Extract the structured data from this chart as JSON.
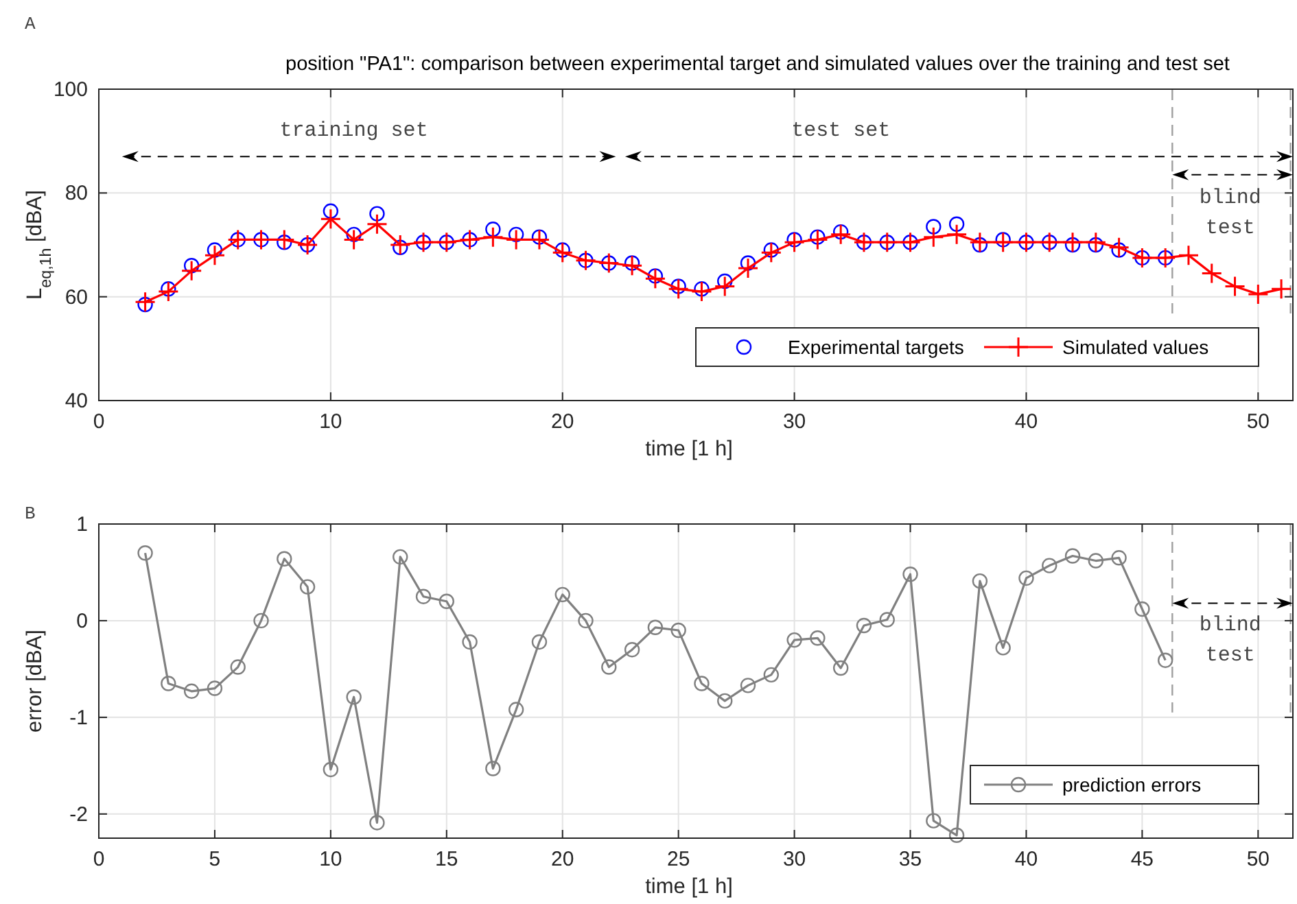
{
  "chart_data": [
    {
      "type": "line",
      "title": "position \"PA1\": comparison between experimental target and simulated values over the training and test set",
      "xlabel": "time [1 h]",
      "ylabel": "L$_{eq,1h}$ [dBA]",
      "xlim": [
        0,
        51.5
      ],
      "xticks": [
        0,
        10,
        20,
        30,
        40,
        50
      ],
      "ylim": [
        40,
        100
      ],
      "yticks": [
        40,
        60,
        80,
        100
      ],
      "grid": true,
      "legend": "bottom right",
      "series": [
        {
          "name": "Experimental targets",
          "type": "scatter",
          "marker": "circle",
          "color": "#0000ff",
          "x": [
            2,
            3,
            4,
            5,
            6,
            7,
            8,
            9,
            10,
            11,
            12,
            13,
            14,
            15,
            16,
            17,
            18,
            19,
            20,
            21,
            22,
            23,
            24,
            25,
            26,
            27,
            28,
            29,
            30,
            31,
            32,
            33,
            34,
            35,
            36,
            37,
            38,
            39,
            40,
            41,
            42,
            43,
            44,
            45,
            46
          ],
          "values": [
            58.5,
            61.5,
            66,
            69,
            71,
            71,
            70.5,
            70,
            76.5,
            72,
            76,
            69.5,
            70.5,
            70.5,
            71,
            73,
            72,
            71.5,
            69,
            67,
            66.5,
            66.5,
            64,
            62,
            61.5,
            63,
            66.5,
            69,
            71,
            71.5,
            72.5,
            70.5,
            70.5,
            70.5,
            73.5,
            74,
            70,
            71,
            70.5,
            70.5,
            70,
            70,
            69,
            67.5,
            67.5
          ]
        },
        {
          "name": "Simulated values",
          "type": "line",
          "marker": "cross",
          "color": "#ff0000",
          "x": [
            2,
            3,
            4,
            5,
            6,
            7,
            8,
            9,
            10,
            11,
            12,
            13,
            14,
            15,
            16,
            17,
            18,
            19,
            20,
            21,
            22,
            23,
            24,
            25,
            26,
            27,
            28,
            29,
            30,
            31,
            32,
            33,
            34,
            35,
            36,
            37,
            38,
            39,
            40,
            41,
            42,
            43,
            44,
            45,
            46,
            47,
            48,
            49,
            50,
            51
          ],
          "values": [
            59,
            61,
            65,
            68,
            71,
            71,
            71,
            70,
            75,
            71,
            74,
            70,
            70.5,
            70.5,
            71,
            71.5,
            71,
            71,
            68.5,
            67,
            66.5,
            66,
            63.5,
            61.5,
            61,
            62,
            65.5,
            68.5,
            70.5,
            71,
            72,
            70.5,
            70.5,
            70.5,
            71.5,
            72,
            70.5,
            70.5,
            70.5,
            70.5,
            70.5,
            70.5,
            69.5,
            67.5,
            67.5,
            68,
            64.5,
            62,
            60.5,
            61.5
          ]
        }
      ],
      "ref_lines": [
        {
          "axis": "x",
          "value": 46.3,
          "color": "#a0a0a0",
          "line_style": "dashed"
        },
        {
          "axis": "x",
          "value": 51.4,
          "color": "#a0a0a0",
          "line_style": "dashed"
        }
      ],
      "annotations": [
        "A",
        "training set",
        "test set",
        "blind test"
      ]
    },
    {
      "type": "line",
      "xlabel": "time [1 h]",
      "ylabel": "error [dBA]",
      "xlim": [
        0,
        51.5
      ],
      "xticks": [
        0,
        5,
        10,
        15,
        20,
        25,
        30,
        35,
        40,
        45,
        50
      ],
      "ylim": [
        -2.25,
        1
      ],
      "yticks": [
        -2,
        -1,
        0,
        1
      ],
      "grid": true,
      "legend": "bottom right",
      "series": [
        {
          "name": "prediction errors",
          "type": "line",
          "marker": "circle",
          "color": "#808080",
          "x": [
            2,
            3,
            4,
            5,
            6,
            7,
            8,
            9,
            10,
            11,
            12,
            13,
            14,
            15,
            16,
            17,
            18,
            19,
            20,
            21,
            22,
            23,
            24,
            25,
            26,
            27,
            28,
            29,
            30,
            31,
            32,
            33,
            34,
            35,
            36,
            37,
            38,
            39,
            40,
            41,
            42,
            43,
            44,
            45,
            46
          ],
          "values": [
            0.7,
            -0.65,
            -0.73,
            -0.7,
            -0.48,
            0,
            0.64,
            0.35,
            -1.54,
            -0.79,
            -2.09,
            0.66,
            0.25,
            0.2,
            -0.22,
            -1.53,
            -0.92,
            -0.22,
            0.27,
            0,
            -0.48,
            -0.3,
            -0.07,
            -0.1,
            -0.65,
            -0.83,
            -0.67,
            -0.56,
            -0.2,
            -0.18,
            -0.49,
            -0.05,
            0.01,
            0.48,
            -2.07,
            -2.22,
            0.41,
            -0.28,
            0.44,
            0.57,
            0.67,
            0.62,
            0.65,
            0.12,
            -0.41
          ]
        }
      ],
      "ref_lines": [
        {
          "axis": "x",
          "value": 46.3,
          "color": "#a0a0a0",
          "line_style": "dashed"
        },
        {
          "axis": "x",
          "value": 51.4,
          "color": "#a0a0a0",
          "line_style": "dashed"
        }
      ],
      "annotations": [
        "B",
        "blind test"
      ]
    }
  ]
}
